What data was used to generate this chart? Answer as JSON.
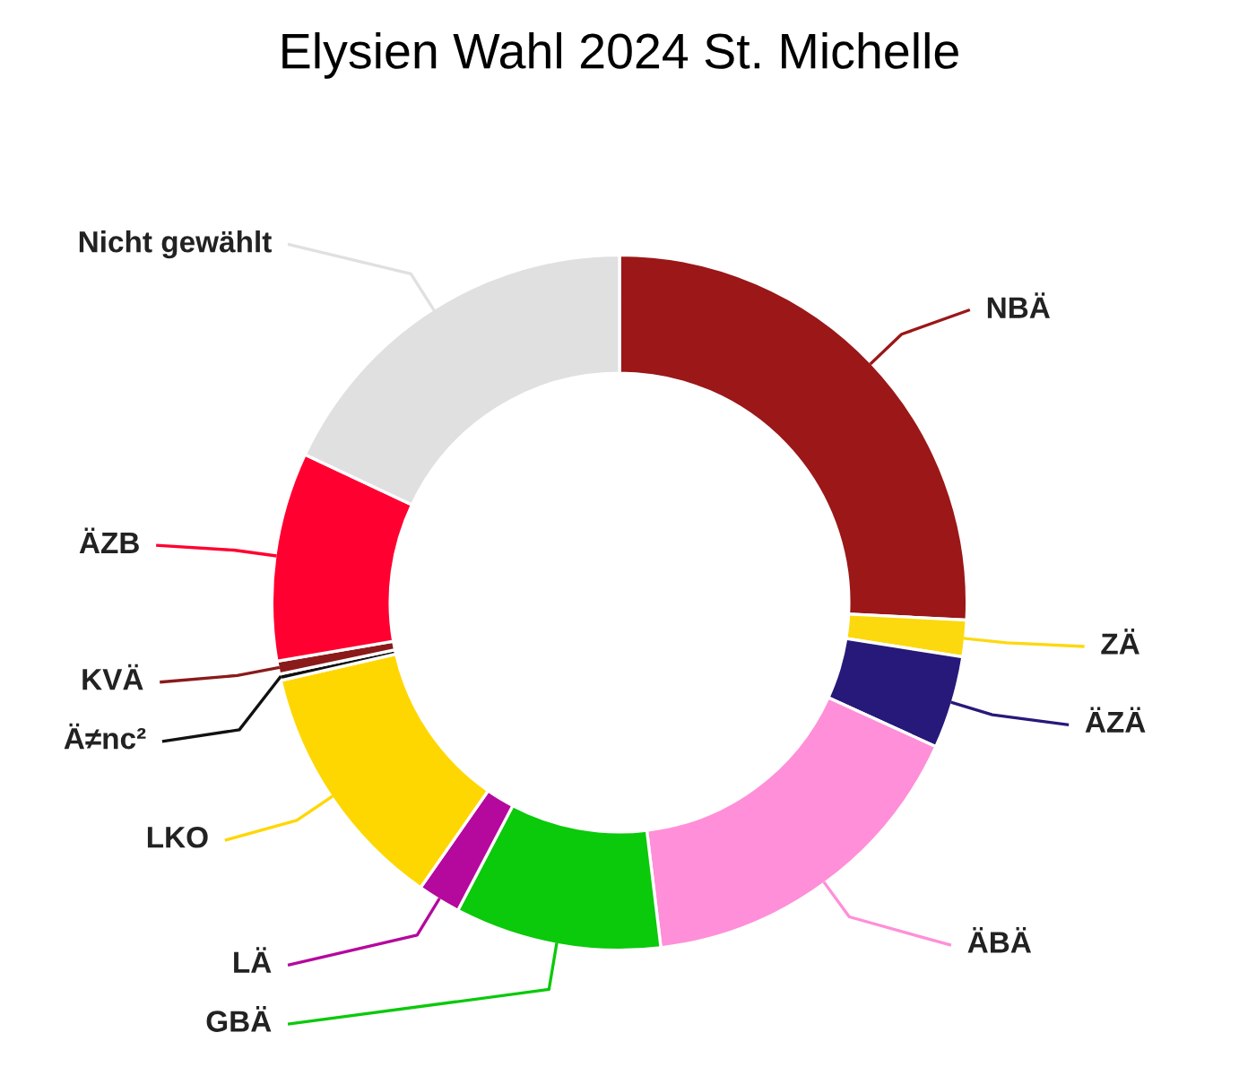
{
  "chart_data": {
    "type": "donut",
    "title": "Elysien Wahl 2024 St. Michelle",
    "categories": [
      "NBÄ",
      "ZÄ",
      "ÄZÄ",
      "ÄBÄ",
      "GBÄ",
      "LÄ",
      "LKO",
      "Ä≠nc²",
      "KVÄ",
      "ÄZB",
      "Nicht gewählt"
    ],
    "values": [
      25.8,
      1.7,
      4.3,
      16.3,
      9.6,
      2.0,
      11.7,
      0.3,
      0.6,
      9.7,
      18.0
    ],
    "colors": [
      "#9b1718",
      "#fcd90f",
      "#27197a",
      "#ff8fd8",
      "#0bc90b",
      "#b5089d",
      "#ffd700",
      "#111111",
      "#8b1a1a",
      "#ff0030",
      "#e0e0e0"
    ],
    "legend": false
  }
}
